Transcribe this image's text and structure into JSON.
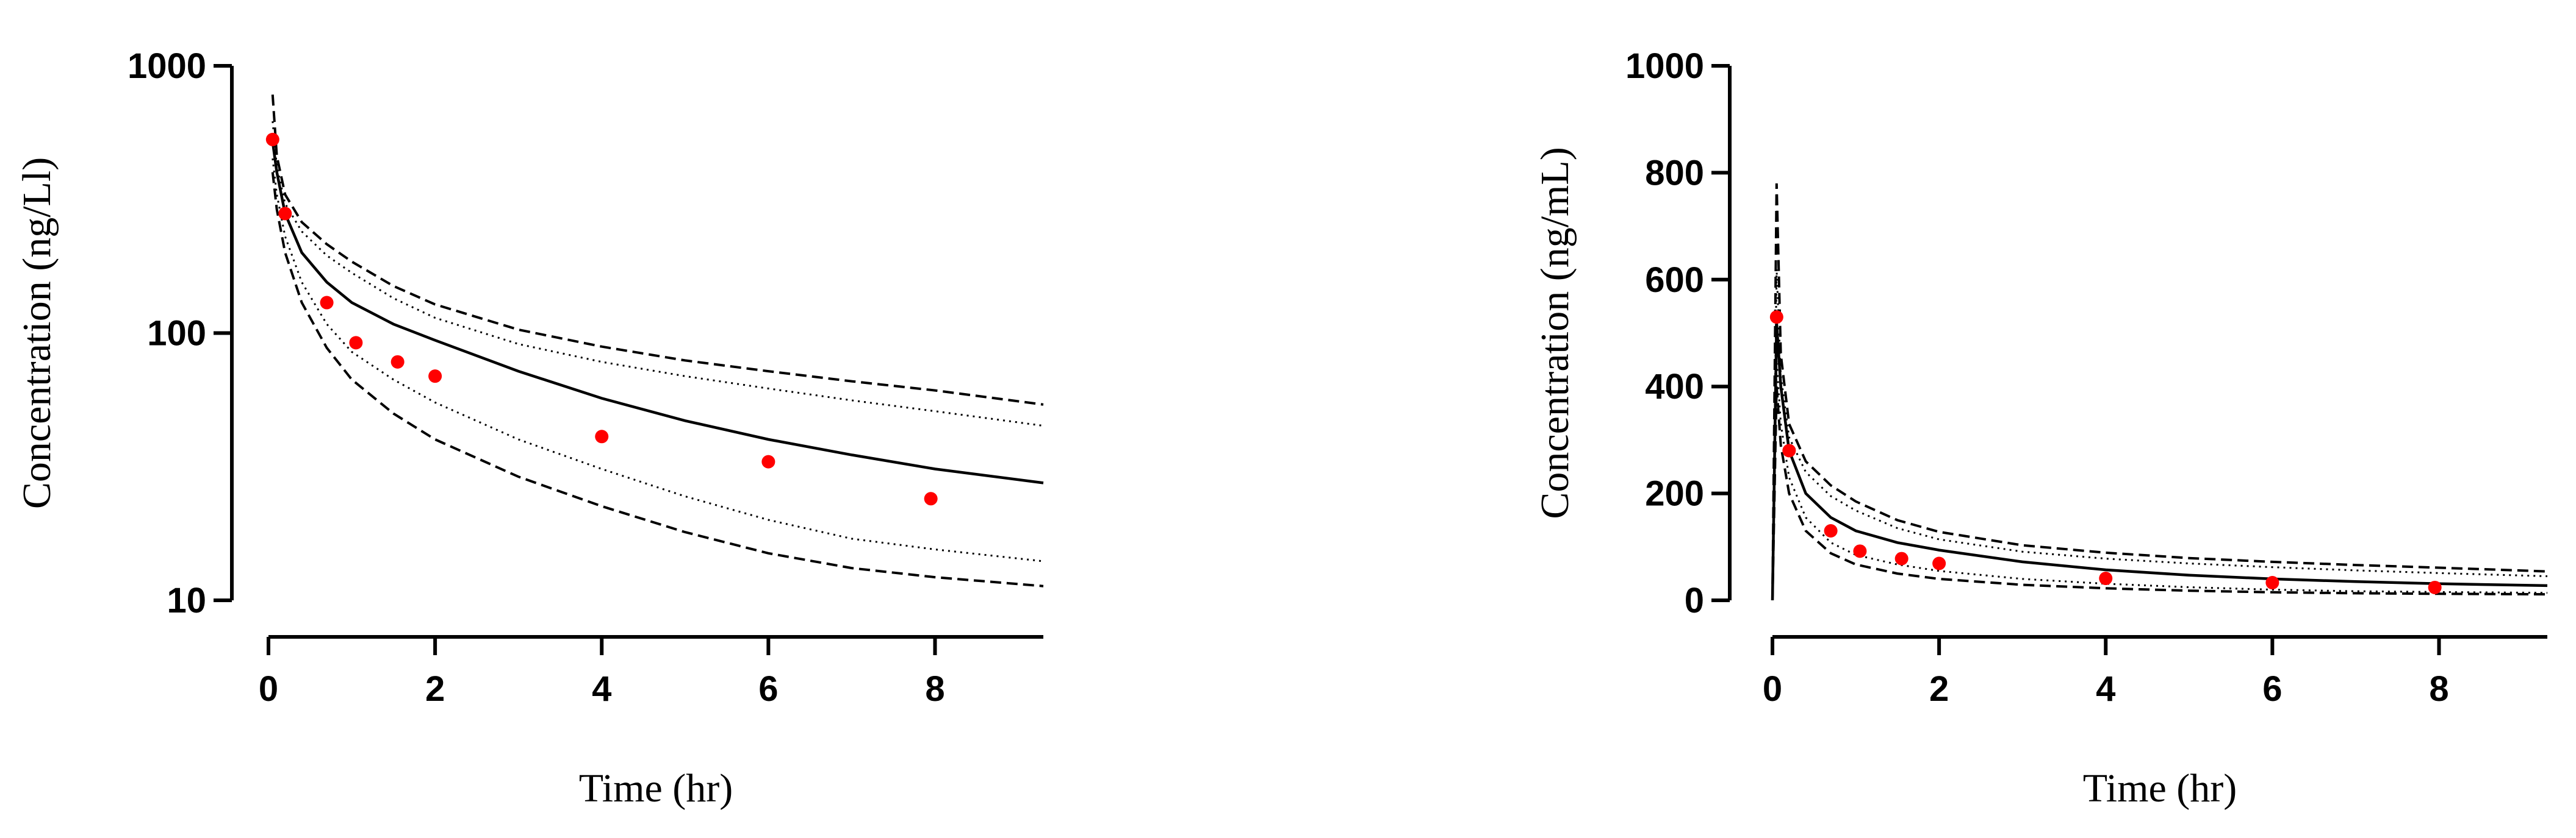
{
  "chart_data": [
    {
      "type": "line",
      "yscale": "log",
      "xlabel": "Time (hr)",
      "ylabel": "Concentration (ng/Ll)",
      "xlim": [
        0,
        9.3
      ],
      "ylim": [
        10,
        1000
      ],
      "xticks": [
        0,
        2,
        4,
        6,
        8
      ],
      "yticks": [
        10,
        100,
        1000
      ],
      "xtick_labels": [
        "0",
        "2",
        "4",
        "6",
        "8"
      ],
      "ytick_labels": [
        "10",
        "100",
        "1000"
      ],
      "grid": false,
      "legend": "none",
      "colors": {
        "observed": "#ff0000",
        "lines": "#000000"
      },
      "series": [
        {
          "style": "dashed",
          "x": [
            0.05,
            0.1,
            0.2,
            0.4,
            0.7,
            1.0,
            1.5,
            2,
            3,
            4,
            5,
            6,
            7,
            8,
            9.3
          ],
          "y": [
            780,
            460,
            330,
            260,
            215,
            185,
            150,
            128,
            103,
            89,
            79,
            72,
            66,
            61,
            54
          ]
        },
        {
          "style": "dotted",
          "x": [
            0.05,
            0.1,
            0.2,
            0.4,
            0.7,
            1.0,
            1.5,
            2,
            3,
            4,
            5,
            6,
            7,
            8,
            9.3
          ],
          "y": [
            620,
            420,
            305,
            240,
            195,
            168,
            135,
            114,
            91,
            78,
            69,
            62,
            56,
            51,
            45
          ]
        },
        {
          "style": "solid",
          "x": [
            0.05,
            0.1,
            0.2,
            0.4,
            0.7,
            1.0,
            1.5,
            2,
            3,
            4,
            5,
            6,
            7,
            8,
            9.3
          ],
          "y": [
            520,
            400,
            280,
            200,
            155,
            130,
            108,
            94,
            72,
            57,
            47,
            40,
            35,
            31,
            27.5
          ]
        },
        {
          "style": "dotted",
          "x": [
            0.05,
            0.1,
            0.2,
            0.4,
            0.7,
            1.0,
            1.5,
            2,
            3,
            4,
            5,
            6,
            7,
            8,
            9.3
          ],
          "y": [
            450,
            330,
            230,
            155,
            108,
            85,
            67,
            55,
            40,
            31,
            24.5,
            20,
            17,
            15.5,
            14
          ]
        },
        {
          "style": "dashed",
          "x": [
            0.05,
            0.1,
            0.2,
            0.4,
            0.7,
            1.0,
            1.5,
            2,
            3,
            4,
            5,
            6,
            7,
            8,
            9.3
          ],
          "y": [
            400,
            290,
            200,
            130,
            88,
            67,
            50,
            40,
            29,
            22.5,
            18,
            15,
            13.2,
            12.2,
            11.3
          ]
        }
      ],
      "observed": {
        "x": [
          0.05,
          0.2,
          0.7,
          1.05,
          1.55,
          2.0,
          4.0,
          6.0,
          7.95
        ],
        "y": [
          530,
          280,
          130,
          92,
          78,
          69,
          41,
          33,
          24
        ]
      }
    },
    {
      "type": "line",
      "yscale": "linear",
      "xlabel": "Time (hr)",
      "ylabel": "Concentration (ng/mL)",
      "xlim": [
        0,
        9.3
      ],
      "ylim": [
        0,
        1000
      ],
      "xticks": [
        0,
        2,
        4,
        6,
        8
      ],
      "yticks": [
        0,
        200,
        400,
        600,
        800,
        1000
      ],
      "xtick_labels": [
        "0",
        "2",
        "4",
        "6",
        "8"
      ],
      "ytick_labels": [
        "0",
        "200",
        "400",
        "600",
        "800",
        "1000"
      ],
      "grid": false,
      "legend": "none",
      "colors": {
        "observed": "#ff0000",
        "lines": "#000000"
      },
      "series": [
        {
          "style": "dashed",
          "x": [
            0,
            0.05,
            0.1,
            0.2,
            0.4,
            0.7,
            1.0,
            1.5,
            2,
            3,
            4,
            5,
            6,
            7,
            8,
            9.3
          ],
          "y": [
            0,
            780,
            460,
            330,
            260,
            215,
            185,
            150,
            128,
            103,
            89,
            79,
            72,
            66,
            61,
            54
          ]
        },
        {
          "style": "dotted",
          "x": [
            0,
            0.05,
            0.1,
            0.2,
            0.4,
            0.7,
            1.0,
            1.5,
            2,
            3,
            4,
            5,
            6,
            7,
            8,
            9.3
          ],
          "y": [
            0,
            620,
            420,
            305,
            240,
            195,
            168,
            135,
            114,
            91,
            78,
            69,
            62,
            56,
            51,
            45
          ]
        },
        {
          "style": "solid",
          "x": [
            0,
            0.05,
            0.1,
            0.2,
            0.4,
            0.7,
            1.0,
            1.5,
            2,
            3,
            4,
            5,
            6,
            7,
            8,
            9.3
          ],
          "y": [
            0,
            520,
            400,
            280,
            200,
            155,
            130,
            108,
            94,
            72,
            57,
            47,
            40,
            35,
            31,
            27.5
          ]
        },
        {
          "style": "dotted",
          "x": [
            0,
            0.05,
            0.1,
            0.2,
            0.4,
            0.7,
            1.0,
            1.5,
            2,
            3,
            4,
            5,
            6,
            7,
            8,
            9.3
          ],
          "y": [
            0,
            450,
            330,
            230,
            155,
            108,
            85,
            67,
            55,
            40,
            31,
            24.5,
            20,
            17,
            15.5,
            14
          ]
        },
        {
          "style": "dashed",
          "x": [
            0,
            0.05,
            0.1,
            0.2,
            0.4,
            0.7,
            1.0,
            1.5,
            2,
            3,
            4,
            5,
            6,
            7,
            8,
            9.3
          ],
          "y": [
            0,
            400,
            290,
            200,
            130,
            88,
            67,
            50,
            40,
            29,
            22.5,
            18,
            15,
            13.2,
            12.2,
            11.3
          ]
        }
      ],
      "observed": {
        "x": [
          0.05,
          0.2,
          0.7,
          1.05,
          1.55,
          2.0,
          4.0,
          6.0,
          7.95
        ],
        "y": [
          530,
          280,
          130,
          92,
          78,
          69,
          41,
          33,
          24
        ]
      }
    }
  ]
}
